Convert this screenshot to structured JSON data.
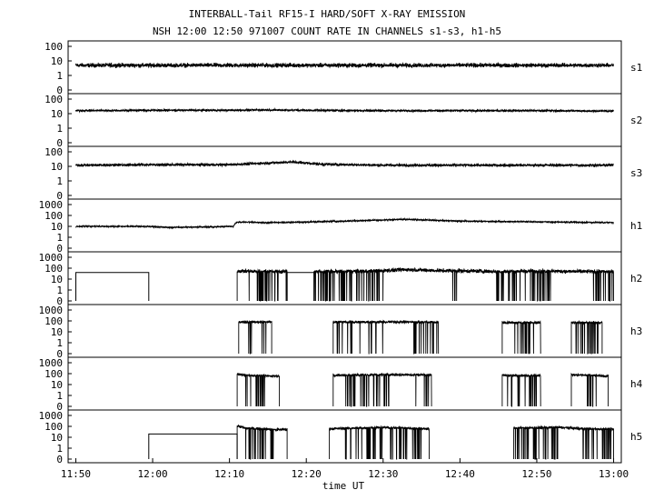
{
  "chart_data": {
    "type": "line",
    "title": "INTERBALL-Tail RF15-I HARD/SOFT X-RAY EMISSION",
    "subtitle": "NSH 12:00 12:50 971007  COUNT RATE IN CHANNELS s1-s3, h1-h5",
    "xlabel": "time UT",
    "x_ticks": [
      "11:50",
      "12:00",
      "12:10",
      "12:20",
      "12:30",
      "12:40",
      "12:50",
      "13:00"
    ],
    "x_tick_minutes": [
      0,
      10,
      20,
      30,
      40,
      50,
      60,
      70
    ],
    "xlim_minutes_from_1150": [
      -1,
      71
    ],
    "y_scale": "log",
    "panels": [
      {
        "name": "s1",
        "y_ticks": [
          "100",
          "10",
          "1",
          "0"
        ],
        "profile": [
          [
            0,
            5
          ],
          [
            10,
            5
          ],
          [
            20,
            5
          ],
          [
            30,
            5
          ],
          [
            40,
            5
          ],
          [
            50,
            5
          ],
          [
            60,
            5
          ],
          [
            70,
            5
          ]
        ],
        "noise_decades": 0.12,
        "dropouts": [],
        "windows": [
          [
            0,
            70
          ]
        ]
      },
      {
        "name": "s2",
        "y_ticks": [
          "100",
          "10",
          "1",
          "0"
        ],
        "profile": [
          [
            0,
            16
          ],
          [
            10,
            17
          ],
          [
            20,
            17
          ],
          [
            25,
            18
          ],
          [
            30,
            17
          ],
          [
            40,
            16
          ],
          [
            50,
            16
          ],
          [
            60,
            16
          ],
          [
            70,
            15
          ]
        ],
        "noise_decades": 0.06,
        "dropouts": [],
        "windows": [
          [
            0,
            70
          ]
        ]
      },
      {
        "name": "s3",
        "y_ticks": [
          "100",
          "10",
          "1",
          "0"
        ],
        "profile": [
          [
            0,
            12
          ],
          [
            10,
            13
          ],
          [
            20,
            13
          ],
          [
            25,
            17
          ],
          [
            28,
            20
          ],
          [
            32,
            14
          ],
          [
            40,
            12
          ],
          [
            50,
            12
          ],
          [
            60,
            12
          ],
          [
            70,
            12
          ]
        ],
        "noise_decades": 0.08,
        "dropouts": [],
        "windows": [
          [
            0,
            70
          ]
        ]
      },
      {
        "name": "h1",
        "y_ticks": [
          "1000",
          "100",
          "10",
          "1",
          "0"
        ],
        "profile": [
          [
            0,
            10
          ],
          [
            9,
            10
          ],
          [
            12,
            8
          ],
          [
            18,
            9
          ],
          [
            20.5,
            10
          ],
          [
            21,
            25
          ],
          [
            25,
            22
          ],
          [
            30,
            25
          ],
          [
            35,
            30
          ],
          [
            40,
            38
          ],
          [
            43,
            45
          ],
          [
            45,
            40
          ],
          [
            50,
            30
          ],
          [
            55,
            28
          ],
          [
            60,
            26
          ],
          [
            65,
            24
          ],
          [
            70,
            22
          ]
        ],
        "noise_decades": 0.05,
        "dropouts": [],
        "windows": [
          [
            0,
            70
          ]
        ]
      },
      {
        "name": "h2",
        "y_ticks": [
          "1000",
          "100",
          "10",
          "1",
          "0"
        ],
        "profile": [
          [
            21,
            55
          ],
          [
            26,
            50
          ],
          [
            27,
            50
          ],
          [
            35,
            50
          ],
          [
            40,
            60
          ],
          [
            43,
            75
          ],
          [
            47,
            60
          ],
          [
            55,
            50
          ],
          [
            60,
            55
          ],
          [
            65,
            50
          ],
          [
            70,
            48
          ]
        ],
        "noise_decades": 0.15,
        "dropouts": [
          [
            22,
            27.5,
            10
          ],
          [
            31,
            40,
            10
          ],
          [
            49,
            50,
            7
          ],
          [
            54,
            62,
            10
          ],
          [
            67,
            70,
            10
          ]
        ],
        "windows": [
          [
            21,
            27.5
          ],
          [
            31,
            70
          ]
        ],
        "boxes": [
          {
            "t0": 0,
            "t1": 9.5,
            "value": 40
          },
          {
            "t0": 27.5,
            "t1": 31,
            "value": 40
          }
        ]
      },
      {
        "name": "h3",
        "y_ticks": [
          "1000",
          "100",
          "10",
          "1",
          "0"
        ],
        "profile": [
          [
            21.2,
            80
          ],
          [
            25,
            80
          ],
          [
            33.5,
            80
          ],
          [
            40,
            80
          ],
          [
            46.5,
            80
          ],
          [
            55.5,
            70
          ],
          [
            60,
            70
          ],
          [
            64.5,
            70
          ],
          [
            68.5,
            70
          ]
        ],
        "noise_decades": 0.1,
        "dropouts": [
          [
            22,
            25,
            8
          ],
          [
            34,
            40,
            6
          ],
          [
            44,
            47,
            10
          ],
          [
            56,
            60,
            8
          ],
          [
            65,
            68,
            8
          ]
        ],
        "windows": [
          [
            21.2,
            25.5
          ],
          [
            33.5,
            47.2
          ],
          [
            55.5,
            60.5
          ],
          [
            64.5,
            68.5
          ]
        ]
      },
      {
        "name": "h4",
        "y_ticks": [
          "1000",
          "100",
          "10",
          "1",
          "0"
        ],
        "profile": [
          [
            21,
            90
          ],
          [
            22,
            70
          ],
          [
            26,
            60
          ],
          [
            33.5,
            70
          ],
          [
            40,
            80
          ],
          [
            46,
            80
          ],
          [
            55.5,
            70
          ],
          [
            60,
            65
          ],
          [
            64.5,
            80
          ],
          [
            69,
            60
          ]
        ],
        "noise_decades": 0.1,
        "dropouts": [
          [
            22,
            25,
            10
          ],
          [
            35,
            41,
            8
          ],
          [
            44,
            46,
            6
          ],
          [
            56,
            60,
            8
          ],
          [
            66,
            68,
            10
          ]
        ],
        "windows": [
          [
            21,
            26.5
          ],
          [
            33.5,
            46.3
          ],
          [
            55.5,
            60.5
          ],
          [
            64.5,
            69.3
          ]
        ]
      },
      {
        "name": "h5",
        "y_ticks": [
          "1000",
          "100",
          "10",
          "1",
          "0"
        ],
        "profile": [
          [
            21,
            110
          ],
          [
            22,
            70
          ],
          [
            26,
            50
          ],
          [
            33,
            60
          ],
          [
            40,
            80
          ],
          [
            46,
            60
          ],
          [
            57,
            70
          ],
          [
            63,
            80
          ],
          [
            66,
            60
          ],
          [
            70,
            55
          ]
        ],
        "noise_decades": 0.1,
        "dropouts": [
          [
            22,
            27,
            7
          ],
          [
            35,
            45,
            10
          ],
          [
            57,
            63,
            10
          ],
          [
            66,
            70,
            10
          ]
        ],
        "windows": [
          [
            21,
            27.5
          ],
          [
            33,
            46
          ],
          [
            57,
            70
          ]
        ],
        "boxes": [
          {
            "t0": 9.5,
            "t1": 21,
            "value": 20
          }
        ]
      }
    ]
  }
}
